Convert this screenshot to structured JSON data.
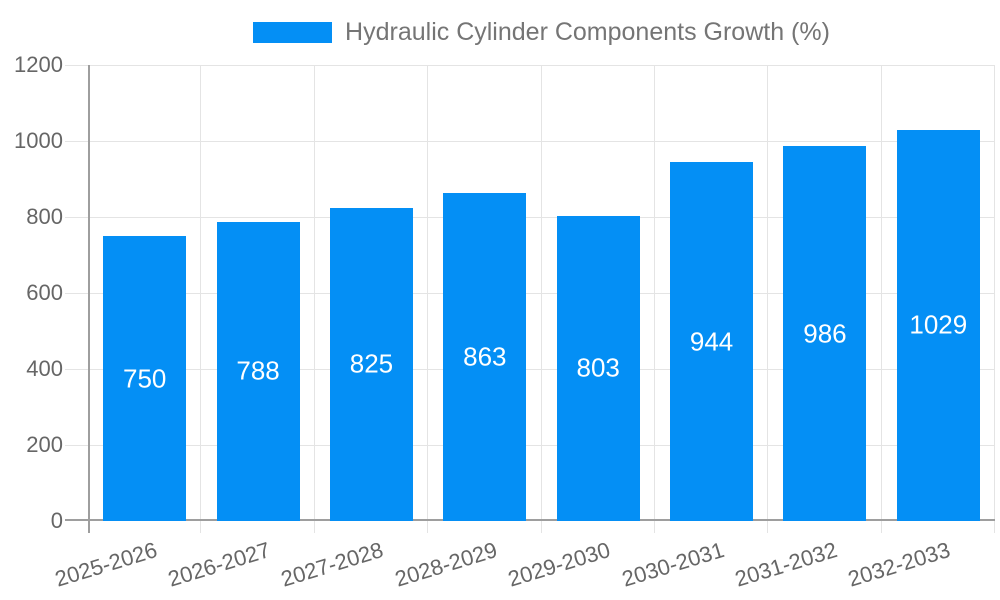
{
  "chart_data": {
    "type": "bar",
    "title": "Hydraulic Cylinder Components Growth (%)",
    "legend_position": "top",
    "categories": [
      "2025-2026",
      "2026-2027",
      "2027-2028",
      "2028-2029",
      "2029-2030",
      "2030-2031",
      "2031-2032",
      "2032-2033"
    ],
    "values": [
      750,
      788,
      825,
      863,
      803,
      944,
      986,
      1029
    ],
    "value_labels": [
      "750",
      "788",
      "825",
      "863",
      "803",
      "944",
      "986",
      "1029"
    ],
    "xlabel": "",
    "ylabel": "",
    "ylim": [
      0,
      1200
    ],
    "ytick_step": 200,
    "ytick_labels": [
      "0",
      "200",
      "400",
      "600",
      "800",
      "1000",
      "1200"
    ],
    "grid": "on",
    "bar_color": "#048ff5",
    "value_label_color": "#ffffff",
    "grid_color": "#e4e4e4",
    "axis_color": "#9e9e9e",
    "tick_label_color": "#666666",
    "legend_text_color": "#757575",
    "background_color": "#ffffff"
  }
}
